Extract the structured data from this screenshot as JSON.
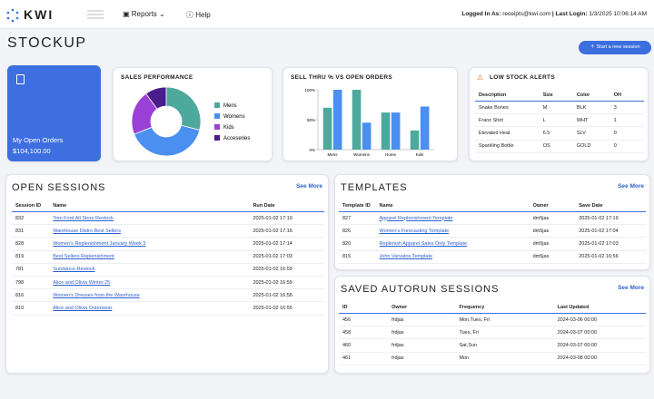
{
  "header": {
    "logo": "KWI",
    "nav": [
      "Reports",
      "Help"
    ],
    "login_label": "Logged In As:",
    "email": "receipts@kwi.com",
    "last_login_label": "| Last Login:",
    "last_login": "1/3/2025 10:06:14 AM"
  },
  "page": {
    "title": "STOCKUP",
    "button": "Start a new session"
  },
  "open_orders": {
    "label": "My Open Orders",
    "value": "$104,100.00"
  },
  "sales_performance": {
    "type": "pie",
    "title": "SALES PERFORMANCE",
    "categories": [
      "Mens",
      "Womens",
      "Kids",
      "Acceseries"
    ],
    "values": [
      29,
      40,
      21,
      10
    ],
    "colors": [
      "#4ea99d",
      "#4b8ff0",
      "#9a40d6",
      "#4a1d8c"
    ]
  },
  "sell_thru": {
    "type": "bar",
    "title": "SELL THRU % VS OPEN ORDERS",
    "categories": [
      "Mens",
      "Womens",
      "Home",
      "Kids"
    ],
    "series": [
      {
        "color": "#4ea99d",
        "values": [
          70,
          100,
          62,
          32
        ]
      },
      {
        "color": "#4b8ff0",
        "values": [
          100,
          45,
          62,
          72
        ]
      }
    ],
    "ylim": [
      0,
      100
    ],
    "yticks": [
      {
        "value": 0,
        "label": "0%"
      },
      {
        "value": 50,
        "label": "50%"
      },
      {
        "value": 100,
        "label": "100%"
      }
    ]
  },
  "low_stock": {
    "title": "LOW STOCK ALERTS",
    "columns": [
      "Description",
      "Size",
      "Color",
      "OH"
    ],
    "rows": [
      [
        "Snake Bones",
        "M",
        "BLK",
        3
      ],
      [
        "Franz Shirt",
        "L",
        "WHT",
        1
      ],
      [
        "Elevated Heat",
        "6.5",
        "SLV",
        0
      ],
      [
        "Sparkling Bottle",
        "OS",
        "GOLD",
        0
      ]
    ]
  },
  "open_sessions": {
    "title": "OPEN SESSIONS",
    "see_more": "See More",
    "columns": [
      "Session ID",
      "Name",
      "Run Date"
    ],
    "rows": [
      [
        "832",
        "Tom Ford All Store Restock",
        "2025-01-02 17:19"
      ],
      [
        "831",
        "Warehouse Distro Best Sellers",
        "2025-01-02 17:16"
      ],
      [
        "828",
        "Women's Replenishment January Week 3",
        "2025-01-02 17:14"
      ],
      [
        "819",
        "Best Sellers Replenishment",
        "2025-01-02 17:03"
      ],
      [
        "781",
        "Sundance Restock",
        "2025-01-02 16:59"
      ],
      [
        "798",
        "Alice and Olivia Winter 25",
        "2025-01-02 16:59"
      ],
      [
        "816",
        "Women's Dresses from the Warehouse",
        "2025-01-02 16:58"
      ],
      [
        "810",
        "Alice and Olivia Outerwear",
        "2025-01-02 16:55"
      ]
    ]
  },
  "templates": {
    "title": "TEMPLATES",
    "see_more": "See More",
    "columns": [
      "Template ID",
      "Name",
      "Owner",
      "Save Date"
    ],
    "rows": [
      [
        "827",
        "Apparel Replenishment Template",
        "dm5jas",
        "2025-01-02 17:19"
      ],
      [
        "826",
        "Women's Forecasting Template",
        "dm5jas",
        "2025-01-02 17:04"
      ],
      [
        "820",
        "Replenish Apparel Sales Only Template",
        "dm5jas",
        "2025-01-02 17:03"
      ],
      [
        "815",
        "John Varvatos Template",
        "dm5jas",
        "2025-01-02 16:56"
      ]
    ]
  },
  "saved_autorun": {
    "title": "SAVED AUTORUN SESSIONS",
    "see_more": "See More",
    "columns": [
      "ID",
      "Owner",
      "Frequency",
      "Last Updated"
    ],
    "rows": [
      [
        "456",
        "frdjas",
        "Mon,Tues, Fri",
        "2024-03-06 00:00"
      ],
      [
        "458",
        "frdjas",
        "Tues, Fri",
        "2024-03-07 00:00"
      ],
      [
        "460",
        "frdjas",
        "Sat,Sun",
        "2024-03-07 00:00"
      ],
      [
        "461",
        "frdjas",
        "Mon",
        "2024-03-08 00:00"
      ]
    ]
  }
}
